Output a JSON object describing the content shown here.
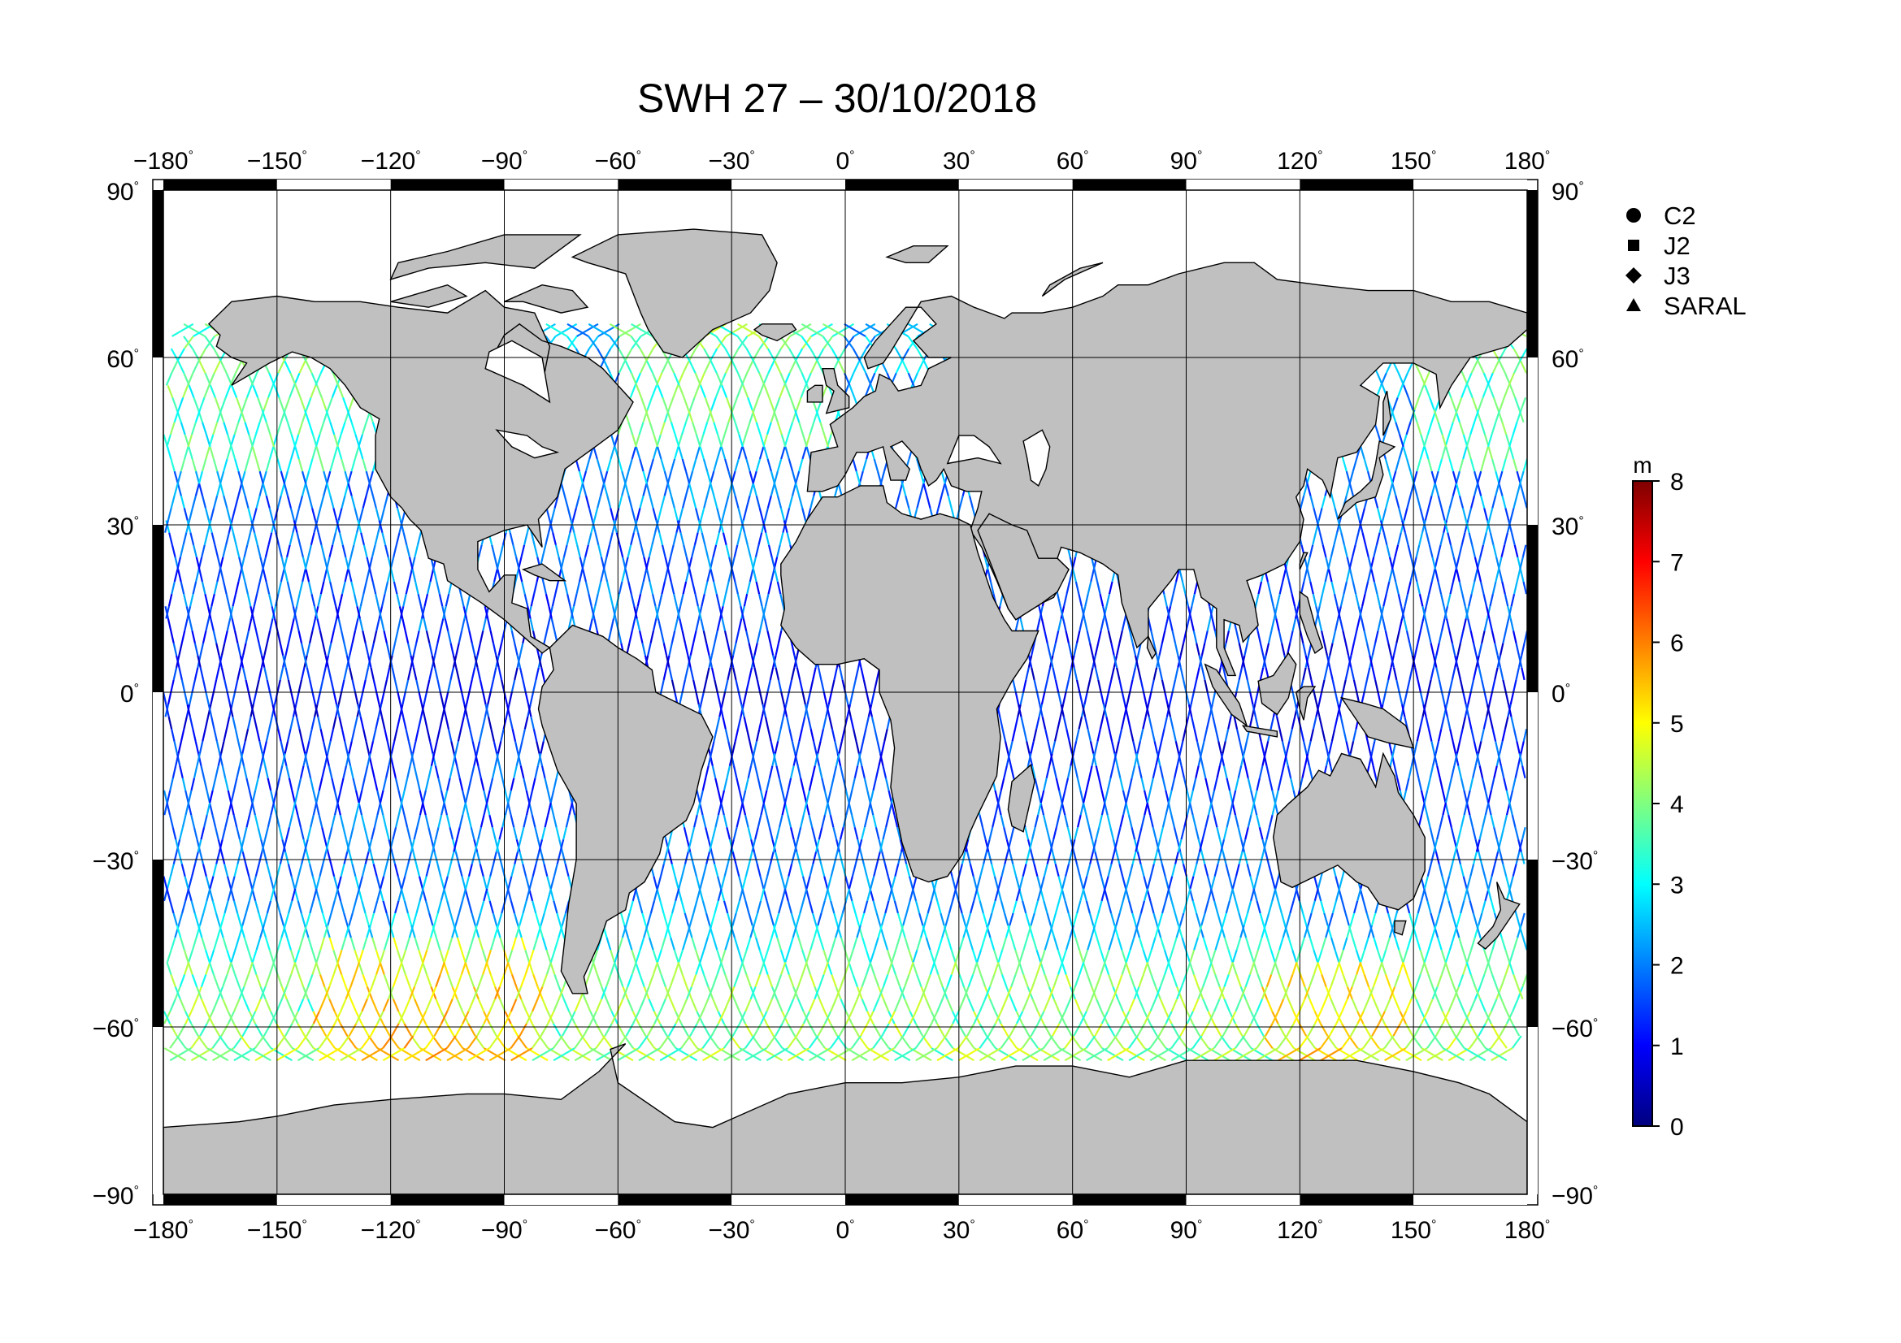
{
  "title": "SWH 27 – 30/10/2018",
  "map": {
    "lon_ticks": [
      -180,
      -150,
      -120,
      -90,
      -60,
      -30,
      0,
      30,
      60,
      90,
      120,
      150,
      180
    ],
    "lat_ticks": [
      90,
      60,
      30,
      0,
      -30,
      -60,
      -90
    ],
    "lon_labels": [
      "−180",
      "−150",
      "−120",
      "−90",
      "−60",
      "−30",
      "0",
      "30",
      "60",
      "90",
      "120",
      "150",
      "180"
    ],
    "lat_labels": [
      "90",
      "60",
      "30",
      "0",
      "−30",
      "−60",
      "−90"
    ],
    "degree_mark": "°",
    "land_color": "#c0c0c0",
    "coast_color": "#000000",
    "frame_colors": [
      "#000000",
      "#ffffff"
    ],
    "lon_range": [
      -180,
      180
    ],
    "lat_range": [
      -90,
      90
    ]
  },
  "legend": {
    "items": [
      {
        "label": "C2",
        "symbol": "circle"
      },
      {
        "label": "J2",
        "symbol": "square"
      },
      {
        "label": "J3",
        "symbol": "diamond"
      },
      {
        "label": "SARAL",
        "symbol": "triangle"
      }
    ]
  },
  "colorbar": {
    "unit": "m",
    "min": 0,
    "max": 8,
    "ticks": [
      "0",
      "1",
      "2",
      "3",
      "4",
      "5",
      "6",
      "7",
      "8"
    ],
    "colormap": [
      "#00007f",
      "#0000ff",
      "#007fff",
      "#00ffff",
      "#7fff7f",
      "#ffff00",
      "#ff7f00",
      "#ff0000",
      "#7f0000"
    ]
  }
}
